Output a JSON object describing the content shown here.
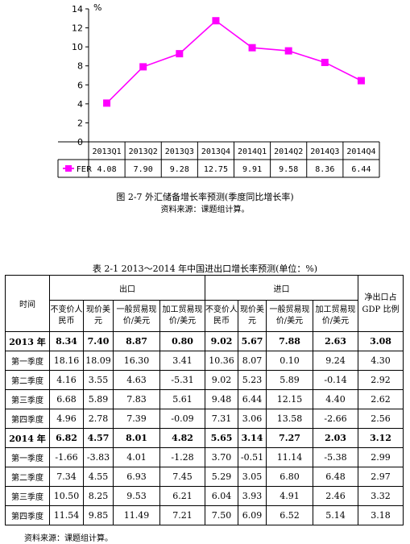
{
  "chart_data": {
    "type": "line",
    "categories": [
      "2013Q1",
      "2013Q2",
      "2013Q3",
      "2013Q4",
      "2014Q1",
      "2014Q2",
      "2014Q3",
      "2014Q4"
    ],
    "series": [
      {
        "name": "FER",
        "values": [
          4.08,
          7.9,
          9.28,
          12.75,
          9.91,
          9.58,
          8.36,
          6.44
        ]
      }
    ],
    "value_labels": [
      "4.08",
      "7.90",
      "9.28",
      "12.75",
      "9.91",
      "9.58",
      "8.36",
      "6.44"
    ],
    "y_unit": "%",
    "ylim": [
      0,
      14
    ],
    "yticks": [
      0,
      2,
      4,
      6,
      8,
      10,
      12,
      14
    ],
    "grid": false,
    "legend": "data-table-row",
    "color": "#ff00ff"
  },
  "figure": {
    "title": "图 2-7    外汇储备增长率预测(季度同比增长率)",
    "source": "资料来源：课题组计算。"
  },
  "table": {
    "title": "表 2-1     2013～2014 年中国进出口增长率预测(单位：%)",
    "header": {
      "time": "时间",
      "export": "出口",
      "import": "进口",
      "net_export": "净出口占GDP 比例",
      "sub": [
        "不变价人民币",
        "现价美元",
        "一般贸易现价/美元",
        "加工贸易现价/美元",
        "不变价人民币",
        "现价美元",
        "一般贸易现价/美元",
        "加工贸易现价/美元"
      ]
    },
    "rows": [
      {
        "label": "2013 年",
        "bold": true,
        "cells": [
          "8.34",
          "7.40",
          "8.87",
          "0.80",
          "9.02",
          "5.67",
          "7.88",
          "2.63",
          "3.08"
        ]
      },
      {
        "label": "第一季度",
        "bold": false,
        "cells": [
          "18.16",
          "18.09",
          "16.30",
          "3.41",
          "10.36",
          "8.07",
          "0.10",
          "9.24",
          "4.30"
        ]
      },
      {
        "label": "第二季度",
        "bold": false,
        "cells": [
          "4.16",
          "3.55",
          "4.63",
          "-5.31",
          "9.02",
          "5.23",
          "5.89",
          "-0.14",
          "2.92"
        ]
      },
      {
        "label": "第三季度",
        "bold": false,
        "cells": [
          "6.68",
          "5.89",
          "7.83",
          "5.61",
          "9.48",
          "6.44",
          "12.15",
          "4.40",
          "2.62"
        ]
      },
      {
        "label": "第四季度",
        "bold": false,
        "cells": [
          "4.96",
          "2.78",
          "7.39",
          "-0.09",
          "7.31",
          "3.06",
          "13.58",
          "-2.66",
          "2.56"
        ]
      },
      {
        "label": "2014 年",
        "bold": true,
        "cells": [
          "6.82",
          "4.57",
          "8.01",
          "4.82",
          "5.65",
          "3.14",
          "7.27",
          "2.03",
          "3.12"
        ]
      },
      {
        "label": "第一季度",
        "bold": false,
        "cells": [
          "-1.66",
          "-3.83",
          "4.01",
          "-1.28",
          "3.70",
          "-0.51",
          "11.14",
          "-5.38",
          "2.99"
        ]
      },
      {
        "label": "第二季度",
        "bold": false,
        "cells": [
          "7.34",
          "4.55",
          "6.93",
          "7.45",
          "5.29",
          "3.05",
          "6.80",
          "6.48",
          "2.97"
        ]
      },
      {
        "label": "第三季度",
        "bold": false,
        "cells": [
          "10.50",
          "8.25",
          "9.53",
          "6.21",
          "6.04",
          "3.93",
          "4.91",
          "2.46",
          "3.32"
        ]
      },
      {
        "label": "第四季度",
        "bold": false,
        "cells": [
          "11.54",
          "9.85",
          "11.49",
          "7.21",
          "7.50",
          "6.09",
          "6.52",
          "5.14",
          "3.18"
        ]
      }
    ],
    "source": "资料来源：课题组计算。"
  }
}
